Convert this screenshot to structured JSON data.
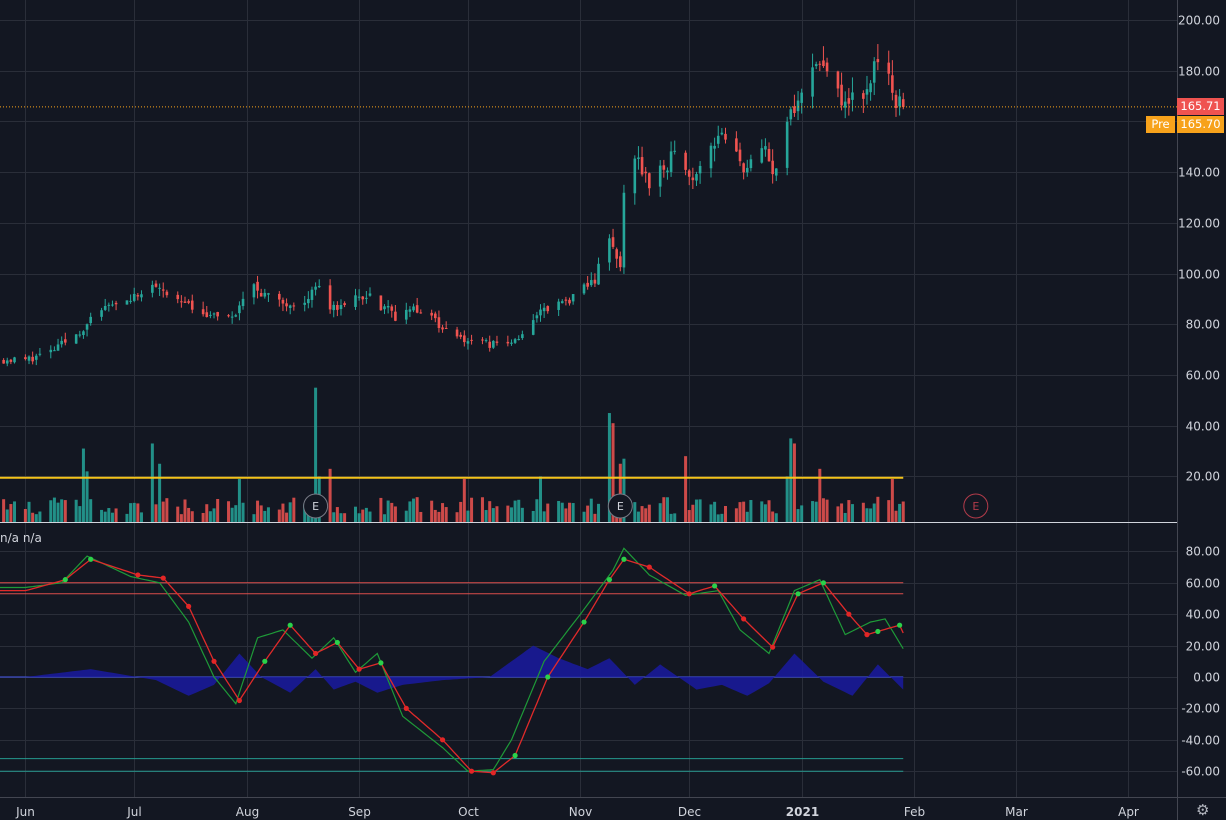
{
  "indicator_label": "n/a n/a",
  "last_price": "165.71",
  "pre_label": "Pre",
  "pre_price": "165.70",
  "earnings_marker": "E",
  "colors": {
    "background": "#131722",
    "grid": "#2a2e39",
    "up": "#26a69a",
    "down": "#ef5350",
    "last_price": "#ef5350",
    "pre": "#f7a21b",
    "threshold_line": "#f5c41a",
    "osc_fast": "#1e9a38",
    "osc_slow": "#e02a2a",
    "osc_hist": "#1a1aa0"
  },
  "icons": {
    "settings": "gear-icon"
  },
  "chart_data": [
    {
      "type": "candlestick",
      "x_axis_labels": [
        "Jun",
        "Jul",
        "Aug",
        "Sep",
        "Oct",
        "Nov",
        "Dec",
        "2021",
        "Feb",
        "Mar",
        "Apr"
      ],
      "y_ticks": [
        20,
        40,
        60,
        80,
        100,
        120,
        140,
        160,
        180,
        200
      ],
      "y_tick_labels": [
        "20.00",
        "40.00",
        "60.00",
        "80.00",
        "100.00",
        "120.00",
        "140.00",
        "160.00",
        "180.00",
        "200.00"
      ],
      "ylim": [
        2,
        203
      ],
      "last_price": 165.71,
      "pre_market": 165.7,
      "grid": true,
      "close_anchors": [
        [
          "2020-06-01",
          66
        ],
        [
          "2020-06-08",
          69
        ],
        [
          "2020-06-15",
          76
        ],
        [
          "2020-06-22",
          85
        ],
        [
          "2020-06-29",
          88
        ],
        [
          "2020-07-07",
          96
        ],
        [
          "2020-07-14",
          88
        ],
        [
          "2020-07-21",
          83
        ],
        [
          "2020-07-28",
          82
        ],
        [
          "2020-08-03",
          95
        ],
        [
          "2020-08-10",
          88
        ],
        [
          "2020-08-17",
          90
        ],
        [
          "2020-08-21",
          96
        ],
        [
          "2020-08-24",
          86
        ],
        [
          "2020-08-31",
          90
        ],
        [
          "2020-09-04",
          91
        ],
        [
          "2020-09-11",
          83
        ],
        [
          "2020-09-18",
          86
        ],
        [
          "2020-09-25",
          78
        ],
        [
          "2020-10-02",
          73
        ],
        [
          "2020-10-09",
          72
        ],
        [
          "2020-10-14",
          74
        ],
        [
          "2020-10-21",
          85
        ],
        [
          "2020-10-30",
          90
        ],
        [
          "2020-11-05",
          98
        ],
        [
          "2020-11-09",
          114
        ],
        [
          "2020-11-12",
          101
        ],
        [
          "2020-11-13",
          131
        ],
        [
          "2020-11-16",
          147
        ],
        [
          "2020-11-20",
          135
        ],
        [
          "2020-11-27",
          147
        ],
        [
          "2020-12-01",
          137
        ],
        [
          "2020-12-09",
          155
        ],
        [
          "2020-12-16",
          142
        ],
        [
          "2020-12-22",
          148
        ],
        [
          "2020-12-24",
          139
        ],
        [
          "2020-12-28",
          160
        ],
        [
          "2021-01-04",
          182
        ],
        [
          "2021-01-08",
          180
        ],
        [
          "2021-01-12",
          168
        ],
        [
          "2021-01-19",
          173
        ],
        [
          "2021-01-22",
          185
        ],
        [
          "2021-01-27",
          168
        ],
        [
          "2021-01-29",
          166
        ]
      ],
      "volume": {
        "threshold": 19.5,
        "baseline": 5,
        "spikes": [
          [
            "2020-06-17",
            31
          ],
          [
            "2020-06-18",
            22
          ],
          [
            "2020-07-06",
            33
          ],
          [
            "2020-07-08",
            25
          ],
          [
            "2020-07-30",
            19
          ],
          [
            "2020-08-20",
            55
          ],
          [
            "2020-08-21",
            20
          ],
          [
            "2020-08-24",
            23
          ],
          [
            "2020-09-30",
            19
          ],
          [
            "2020-10-21",
            20
          ],
          [
            "2020-11-09",
            45
          ],
          [
            "2020-11-10",
            41
          ],
          [
            "2020-11-12",
            25
          ],
          [
            "2020-11-13",
            27
          ],
          [
            "2020-11-30",
            28
          ],
          [
            "2020-12-28",
            20
          ],
          [
            "2020-12-29",
            35
          ],
          [
            "2020-12-30",
            33
          ],
          [
            "2021-01-06",
            23
          ],
          [
            "2021-01-26",
            19
          ]
        ],
        "earnings_dates": [
          "2020-08-20",
          "2020-11-12",
          "2021-02-18"
        ]
      }
    },
    {
      "type": "line",
      "name": "oscillator",
      "y_ticks": [
        -60,
        -40,
        -20,
        0,
        20,
        40,
        60,
        80
      ],
      "y_tick_labels": [
        "-60.00",
        "-40.00",
        "-20.00",
        "0.00",
        "20.00",
        "40.00",
        "60.00",
        "80.00"
      ],
      "ylim": [
        -76,
        86
      ],
      "levels": [
        {
          "value": 60,
          "color": "#ef5350"
        },
        {
          "value": 53,
          "color": "#ef5350"
        },
        {
          "value": -52,
          "color": "#26a69a"
        },
        {
          "value": -60,
          "color": "#26a69a"
        }
      ],
      "zero_line": 0,
      "slow_anchors": [
        [
          "2020-06-01",
          55
        ],
        [
          "2020-06-12",
          62
        ],
        [
          "2020-06-19",
          75
        ],
        [
          "2020-07-02",
          65
        ],
        [
          "2020-07-09",
          63
        ],
        [
          "2020-07-16",
          45
        ],
        [
          "2020-07-23",
          10
        ],
        [
          "2020-07-30",
          -15
        ],
        [
          "2020-08-06",
          10
        ],
        [
          "2020-08-13",
          33
        ],
        [
          "2020-08-20",
          15
        ],
        [
          "2020-08-26",
          22
        ],
        [
          "2020-09-01",
          5
        ],
        [
          "2020-09-07",
          9
        ],
        [
          "2020-09-14",
          -20
        ],
        [
          "2020-09-24",
          -40
        ],
        [
          "2020-10-02",
          -60
        ],
        [
          "2020-10-08",
          -61
        ],
        [
          "2020-10-14",
          -50
        ],
        [
          "2020-10-23",
          0
        ],
        [
          "2020-11-02",
          35
        ],
        [
          "2020-11-09",
          62
        ],
        [
          "2020-11-13",
          75
        ],
        [
          "2020-11-20",
          70
        ],
        [
          "2020-12-01",
          53
        ],
        [
          "2020-12-08",
          58
        ],
        [
          "2020-12-16",
          37
        ],
        [
          "2020-12-24",
          19
        ],
        [
          "2020-12-31",
          53
        ],
        [
          "2021-01-07",
          60
        ],
        [
          "2021-01-14",
          40
        ],
        [
          "2021-01-19",
          27
        ],
        [
          "2021-01-22",
          29
        ],
        [
          "2021-01-28",
          33
        ],
        [
          "2021-01-29",
          28
        ]
      ],
      "fast_anchors": [
        [
          "2020-06-01",
          57
        ],
        [
          "2020-06-11",
          60
        ],
        [
          "2020-06-18",
          77
        ],
        [
          "2020-06-30",
          64
        ],
        [
          "2020-07-08",
          60
        ],
        [
          "2020-07-16",
          35
        ],
        [
          "2020-07-23",
          0
        ],
        [
          "2020-07-29",
          -17
        ],
        [
          "2020-08-04",
          25
        ],
        [
          "2020-08-11",
          30
        ],
        [
          "2020-08-19",
          12
        ],
        [
          "2020-08-25",
          25
        ],
        [
          "2020-08-31",
          3
        ],
        [
          "2020-09-06",
          15
        ],
        [
          "2020-09-13",
          -25
        ],
        [
          "2020-09-24",
          -45
        ],
        [
          "2020-10-01",
          -60
        ],
        [
          "2020-10-08",
          -59
        ],
        [
          "2020-10-13",
          -40
        ],
        [
          "2020-10-22",
          10
        ],
        [
          "2020-11-01",
          40
        ],
        [
          "2020-11-10",
          68
        ],
        [
          "2020-11-13",
          82
        ],
        [
          "2020-11-20",
          65
        ],
        [
          "2020-11-30",
          52
        ],
        [
          "2020-12-09",
          55
        ],
        [
          "2020-12-15",
          30
        ],
        [
          "2020-12-23",
          15
        ],
        [
          "2020-12-30",
          55
        ],
        [
          "2021-01-06",
          62
        ],
        [
          "2021-01-13",
          27
        ],
        [
          "2021-01-20",
          35
        ],
        [
          "2021-01-24",
          37
        ],
        [
          "2021-01-29",
          18
        ]
      ],
      "hist_anchors": [
        [
          "2020-06-01",
          0
        ],
        [
          "2020-06-19",
          5
        ],
        [
          "2020-07-07",
          -2
        ],
        [
          "2020-07-16",
          -12
        ],
        [
          "2020-07-23",
          -5
        ],
        [
          "2020-07-30",
          15
        ],
        [
          "2020-08-05",
          0
        ],
        [
          "2020-08-13",
          -10
        ],
        [
          "2020-08-20",
          5
        ],
        [
          "2020-08-25",
          -8
        ],
        [
          "2020-08-31",
          -3
        ],
        [
          "2020-09-06",
          -10
        ],
        [
          "2020-09-13",
          -5
        ],
        [
          "2020-09-24",
          -2
        ],
        [
          "2020-10-07",
          0
        ],
        [
          "2020-10-19",
          20
        ],
        [
          "2020-10-26",
          12
        ],
        [
          "2020-11-03",
          5
        ],
        [
          "2020-11-09",
          12
        ],
        [
          "2020-11-16",
          -5
        ],
        [
          "2020-11-23",
          8
        ],
        [
          "2020-12-03",
          -8
        ],
        [
          "2020-12-10",
          -5
        ],
        [
          "2020-12-17",
          -12
        ],
        [
          "2020-12-23",
          -4
        ],
        [
          "2020-12-30",
          15
        ],
        [
          "2021-01-07",
          -3
        ],
        [
          "2021-01-15",
          -12
        ],
        [
          "2021-01-22",
          8
        ],
        [
          "2021-01-29",
          -8
        ]
      ]
    }
  ]
}
